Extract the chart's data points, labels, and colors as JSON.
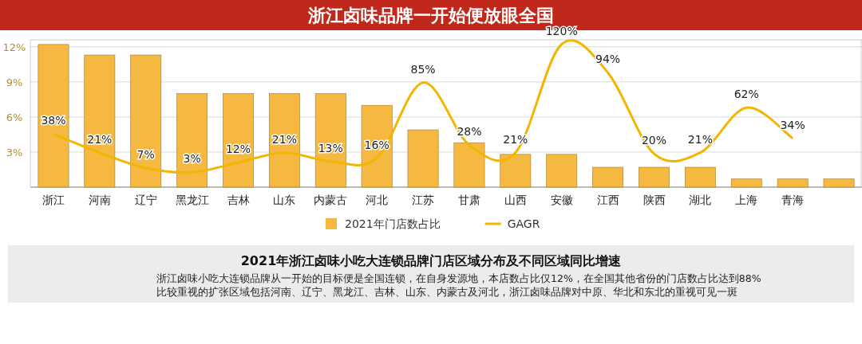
{
  "chart_data": {
    "type": "bar",
    "title": "浙江卤味品牌一开始便放眼全国",
    "categories": [
      "浙江",
      "河南",
      "辽宁",
      "黑龙江",
      "吉林",
      "山东",
      "内蒙古",
      "河北",
      "江苏",
      "甘肃",
      "山西",
      "安徽",
      "江西",
      "陕西",
      "湖北",
      "上海",
      "青海",
      null
    ],
    "series": [
      {
        "name": "2021年门店数占比",
        "color": "#f5b841",
        "values": [
          12.2,
          11.3,
          11.3,
          8.0,
          8.0,
          8.0,
          8.0,
          7.0,
          4.9,
          3.8,
          2.8,
          2.8,
          1.7,
          1.7,
          1.7,
          0.7,
          0.7,
          0.7
        ]
      },
      {
        "name": "GAGR",
        "type": "line",
        "axis": "y2",
        "color": "#f2b500",
        "values": [
          38,
          21,
          7,
          3,
          12,
          21,
          13,
          16,
          85,
          28,
          21,
          120,
          94,
          20,
          21,
          62,
          34,
          null
        ],
        "value_labels": [
          "38%",
          "21%",
          "7%",
          "3%",
          "12%",
          "21%",
          "13%",
          "16%",
          "85%",
          "28%",
          "21%",
          "120%",
          "94%",
          "20%",
          "21%",
          "62%",
          "34%",
          null
        ]
      }
    ],
    "ylim": [
      0,
      12.6
    ],
    "yticks": [
      {
        "value": 3,
        "label": "3%"
      },
      {
        "value": 6,
        "label": "6%"
      },
      {
        "value": 9,
        "label": "9%"
      },
      {
        "value": 12,
        "label": "12%"
      }
    ],
    "y2lim": [
      -10.5,
      124
    ],
    "grid": "y",
    "legend": "bottom",
    "annotations": [
      "2021年浙江卤味小吃大连锁品牌门店区域分布及不同区域同比增速",
      "浙江卤味小吃大连锁品牌从一开始的目标便是全国连锁，在自身发源地，本店数占比仅12%，在全国其他省份的门店数占比达到88%",
      "比较重视的扩张区域包括河南、辽宁、黑龙江、吉林、山东、内蒙古及河北，浙江卤味品牌对中原、华北和东北的重视可见一斑"
    ]
  }
}
